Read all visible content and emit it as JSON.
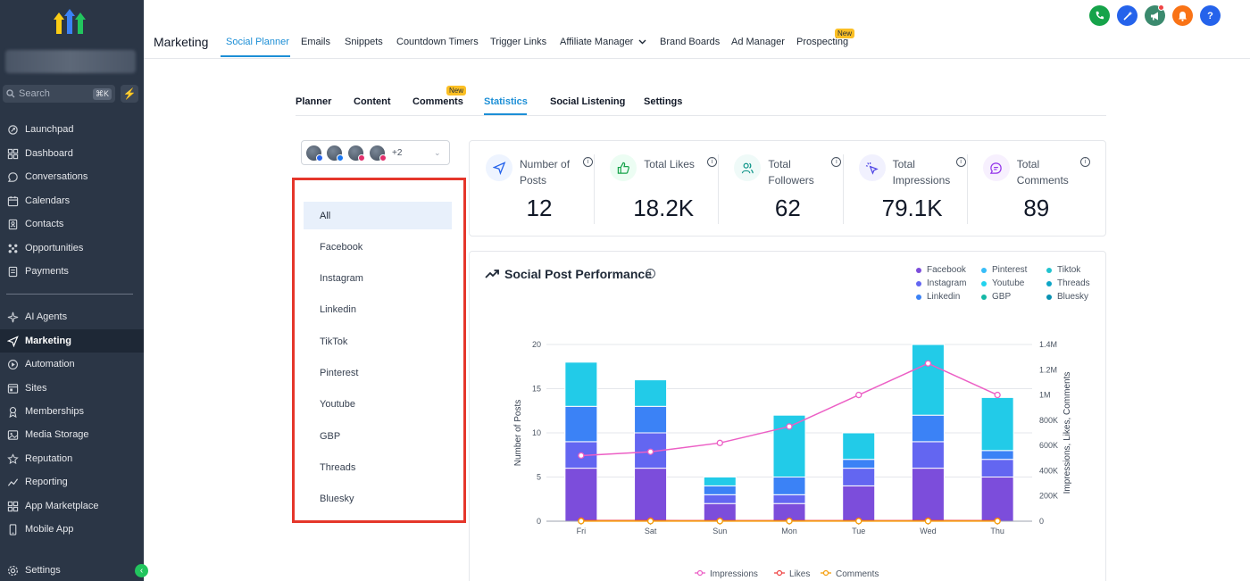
{
  "sidebar": {
    "search_placeholder": "Search",
    "search_shortcut": "⌘K",
    "items": [
      {
        "label": "Launchpad",
        "icon": "launchpad-icon"
      },
      {
        "label": "Dashboard",
        "icon": "dashboard-icon"
      },
      {
        "label": "Conversations",
        "icon": "chat-icon"
      },
      {
        "label": "Calendars",
        "icon": "calendar-icon"
      },
      {
        "label": "Contacts",
        "icon": "contacts-icon"
      },
      {
        "label": "Opportunities",
        "icon": "opportunities-icon"
      },
      {
        "label": "Payments",
        "icon": "payments-icon"
      },
      {
        "label": "AI Agents",
        "icon": "sparkle-icon"
      },
      {
        "label": "Marketing",
        "icon": "send-icon"
      },
      {
        "label": "Automation",
        "icon": "automation-icon"
      },
      {
        "label": "Sites",
        "icon": "sites-icon"
      },
      {
        "label": "Memberships",
        "icon": "memberships-icon"
      },
      {
        "label": "Media Storage",
        "icon": "media-icon"
      },
      {
        "label": "Reputation",
        "icon": "star-icon"
      },
      {
        "label": "Reporting",
        "icon": "reporting-icon"
      },
      {
        "label": "App Marketplace",
        "icon": "apps-icon"
      },
      {
        "label": "Mobile App",
        "icon": "mobile-icon"
      }
    ],
    "active_item": "Marketing",
    "settings_label": "Settings"
  },
  "header": {
    "title": "Marketing",
    "tabs": [
      "Social Planner",
      "Emails",
      "Snippets",
      "Countdown Timers",
      "Trigger Links",
      "Affiliate Manager",
      "Brand Boards",
      "Ad Manager",
      "Prospecting"
    ],
    "active_tab": "Social Planner",
    "new_badge": "New",
    "help_label": "?",
    "colors": {
      "phone": "#16a34a",
      "magic": "#2563eb",
      "announce": "#3b8a6e",
      "bell": "#f97316",
      "help": "#2563eb"
    }
  },
  "subtabs": {
    "items": [
      "Planner",
      "Content",
      "Comments",
      "Statistics",
      "Social Listening",
      "Settings"
    ],
    "active": "Statistics",
    "new_badge": "New"
  },
  "account_picker": {
    "more_count": "+2"
  },
  "platform_dropdown": {
    "items": [
      "All",
      "Facebook",
      "Instagram",
      "Linkedin",
      "TikTok",
      "Pinterest",
      "Youtube",
      "GBP",
      "Threads",
      "Bluesky"
    ],
    "selected": "All"
  },
  "stats": [
    {
      "label": "Number of Posts",
      "value": "12",
      "icon": "send-icon",
      "icon_color": "#2563eb",
      "bg": "#eef4ff"
    },
    {
      "label": "Total Likes",
      "value": "18.2K",
      "icon": "thumbs-up-icon",
      "icon_color": "#16a34a",
      "bg": "#ecfdf3"
    },
    {
      "label": "Total Followers",
      "value": "62",
      "icon": "followers-icon",
      "icon_color": "#0d9488",
      "bg": "#effaf8"
    },
    {
      "label": "Total Impressions",
      "value": "79.1K",
      "icon": "cursor-click-icon",
      "icon_color": "#4f46e5",
      "bg": "#f1f1fe"
    },
    {
      "label": "Total Comments",
      "value": "89",
      "icon": "comment-icon",
      "icon_color": "#9333ea",
      "bg": "#f7f0fe"
    }
  ],
  "chart_panel": {
    "title": "Social Post Performance",
    "legend": [
      {
        "name": "Facebook",
        "color": "#7c4ddb"
      },
      {
        "name": "Pinterest",
        "color": "#38bdf8"
      },
      {
        "name": "Tiktok",
        "color": "#22c3cf"
      },
      {
        "name": "Instagram",
        "color": "#6366f1"
      },
      {
        "name": "Youtube",
        "color": "#22d3ee"
      },
      {
        "name": "Threads",
        "color": "#0ea5c6"
      },
      {
        "name": "Linkedin",
        "color": "#3b82f6"
      },
      {
        "name": "GBP",
        "color": "#14b8a6"
      },
      {
        "name": "Bluesky",
        "color": "#0891b2"
      }
    ]
  },
  "chart_data": {
    "type": "bar",
    "categories": [
      "Fri",
      "Sat",
      "Sun",
      "Mon",
      "Tue",
      "Wed",
      "Thu"
    ],
    "ylabel": "Number of Posts",
    "y2label": "Impressions, Likes, Comments",
    "ylim": [
      0,
      20
    ],
    "yticks": [
      0,
      5,
      10,
      15,
      20
    ],
    "y2lim": [
      0,
      1400000
    ],
    "y2ticks": [
      "0",
      "200K",
      "400K",
      "600K",
      "800K",
      "1M",
      "1.2M",
      "1.4M"
    ],
    "grid": true,
    "stacked_series": [
      {
        "name": "Facebook",
        "color": "#7c4ddb",
        "values": [
          6,
          6,
          2,
          2,
          4,
          6,
          5
        ]
      },
      {
        "name": "Instagram",
        "color": "#6366f1",
        "values": [
          3,
          4,
          1,
          1,
          2,
          3,
          2
        ]
      },
      {
        "name": "Linkedin",
        "color": "#3b82f6",
        "values": [
          4,
          3,
          1,
          2,
          1,
          3,
          1
        ]
      },
      {
        "name": "Youtube",
        "color": "#22cbe8",
        "values": [
          5,
          3,
          1,
          7,
          3,
          8,
          6
        ]
      }
    ],
    "line_series": [
      {
        "name": "Impressions",
        "color": "#ec5fc5",
        "values": [
          520000,
          550000,
          620000,
          750000,
          1000000,
          1250000,
          1000000
        ]
      },
      {
        "name": "Likes",
        "color": "#ef4444",
        "values": [
          5000,
          5000,
          4000,
          4000,
          4000,
          5000,
          4000
        ]
      },
      {
        "name": "Comments",
        "color": "#f59e0b",
        "values": [
          1000,
          1000,
          1000,
          1000,
          1000,
          1000,
          1000
        ]
      }
    ]
  }
}
